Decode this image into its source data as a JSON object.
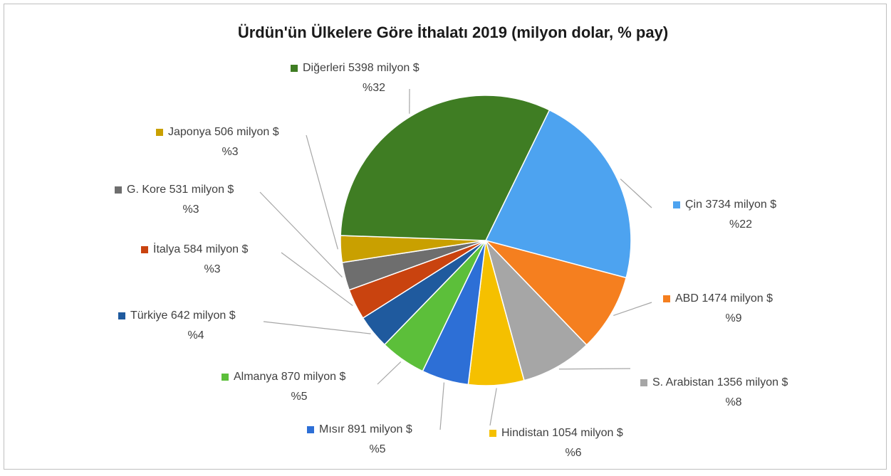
{
  "chart_data": {
    "type": "pie",
    "title": "Ürdün'ün Ülkelere Göre İthalatı 2019 (milyon dolar, % pay)",
    "categories": [
      "Çin",
      "ABD",
      "S. Arabistan",
      "Hindistan",
      "Mısır",
      "Almanya",
      "Türkiye",
      "İtalya",
      "G. Kore",
      "Japonya",
      "Diğerleri"
    ],
    "values": [
      3734,
      1474,
      1356,
      1054,
      891,
      870,
      642,
      584,
      531,
      506,
      5398
    ],
    "value_labels": [
      "3734 milyon $",
      "1474 milyon $",
      "1356 milyon $",
      "1054 milyon $",
      "891 milyon $",
      "870 milyon $",
      "642 milyon $",
      "584 milyon $",
      "531 milyon $",
      "506 milyon $",
      "5398 milyon $"
    ],
    "shares": [
      22,
      9,
      8,
      6,
      5,
      5,
      4,
      3,
      3,
      3,
      32
    ],
    "share_labels": [
      "%22",
      "%9",
      "%8",
      "%6",
      "%5",
      "%5",
      "%4",
      "%3",
      "%3",
      "%3",
      "%32"
    ],
    "colors": [
      "#4da3f0",
      "#f57f1f",
      "#a6a6a6",
      "#f5c000",
      "#2d6fd6",
      "#5cbf3a",
      "#1f5a9e",
      "#c9430f",
      "#6e6e6e",
      "#c9a000",
      "#3f7d23"
    ]
  }
}
